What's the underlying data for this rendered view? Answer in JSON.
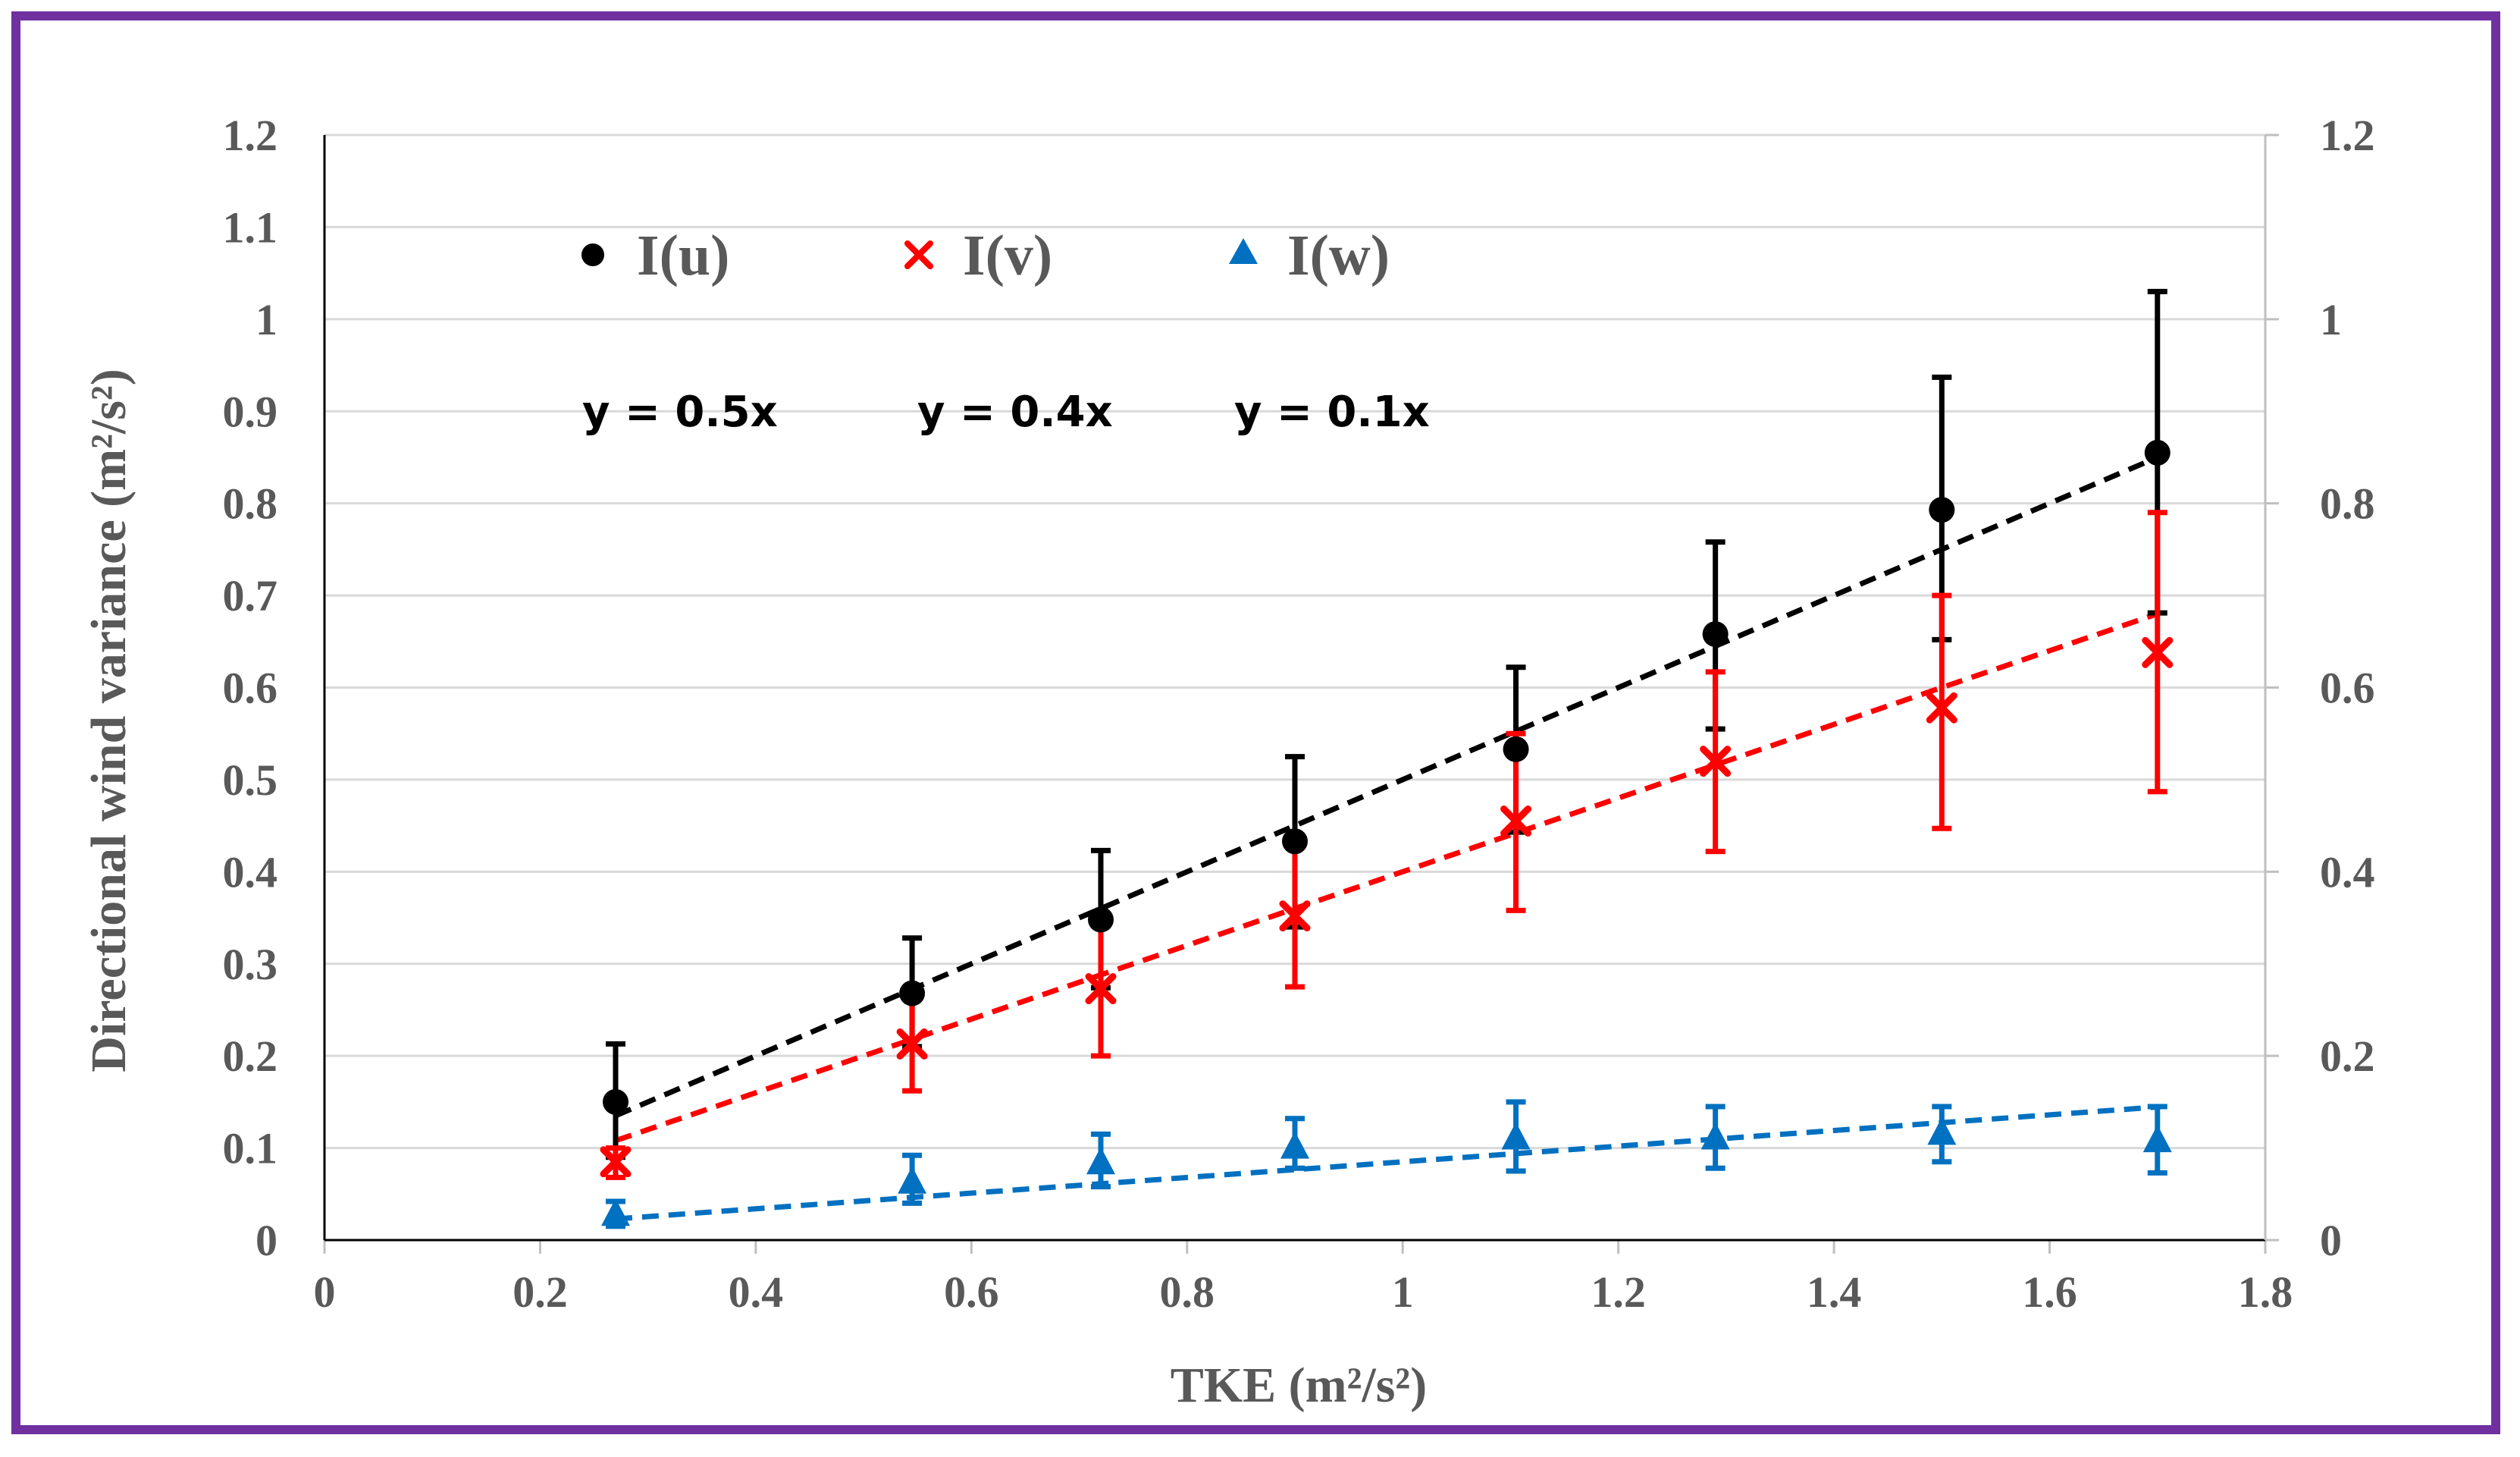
{
  "chart_data": {
    "type": "scatter",
    "title": "",
    "xlabel": "TKE (m²/s²)",
    "ylabel": "Directional wind variance (m²/s²)",
    "xlim": [
      0,
      1.8
    ],
    "ylim": [
      0,
      1.2
    ],
    "y2lim": [
      0,
      1.2
    ],
    "x_ticks": [
      "0",
      "0.2",
      "0.4",
      "0.6",
      "0.8",
      "1",
      "1.2",
      "1.4",
      "1.6",
      "1.8"
    ],
    "y_ticks": [
      "0",
      "0.1",
      "0.2",
      "0.3",
      "0.4",
      "0.5",
      "0.6",
      "0.7",
      "0.8",
      "0.9",
      "1",
      "1.1",
      "1.2"
    ],
    "y2_ticks": [
      "0",
      "0.2",
      "0.4",
      "0.6",
      "0.8",
      "1",
      "1.2"
    ],
    "grid": true,
    "legend_position": "top-left",
    "x": [
      0.27,
      0.545,
      0.72,
      0.9,
      1.105,
      1.29,
      1.5,
      1.7
    ],
    "series": [
      {
        "name": "I(u)",
        "color": "#000000",
        "marker": "circle",
        "values": [
          0.15,
          0.268,
          0.348,
          0.433,
          0.533,
          0.658,
          0.793,
          0.855
        ],
        "err_low": [
          0.09,
          0.21,
          0.274,
          0.34,
          0.443,
          0.555,
          0.652,
          0.681
        ],
        "err_high": [
          0.213,
          0.328,
          0.423,
          0.525,
          0.622,
          0.758,
          0.937,
          1.03
        ],
        "trend_slope": 0.5,
        "equation": "y = 0.5x"
      },
      {
        "name": "I(v)",
        "color": "#ff0000",
        "marker": "x",
        "values": [
          0.085,
          0.213,
          0.273,
          0.352,
          0.455,
          0.52,
          0.578,
          0.638
        ],
        "err_low": [
          0.068,
          0.162,
          0.2,
          0.275,
          0.358,
          0.422,
          0.447,
          0.487
        ],
        "err_high": [
          0.1,
          0.265,
          0.345,
          0.43,
          0.55,
          0.617,
          0.7,
          0.79
        ],
        "trend_slope": 0.4,
        "equation": "y = 0.4x"
      },
      {
        "name": "I(w)",
        "color": "#0070c0",
        "marker": "triangle",
        "values": [
          0.027,
          0.062,
          0.083,
          0.1,
          0.11,
          0.11,
          0.115,
          0.107
        ],
        "err_low": [
          0.015,
          0.04,
          0.058,
          0.078,
          0.075,
          0.078,
          0.085,
          0.073
        ],
        "err_high": [
          0.042,
          0.092,
          0.115,
          0.132,
          0.15,
          0.145,
          0.145,
          0.145
        ],
        "trend_slope": 0.085,
        "equation": "y = 0.1x"
      }
    ]
  }
}
